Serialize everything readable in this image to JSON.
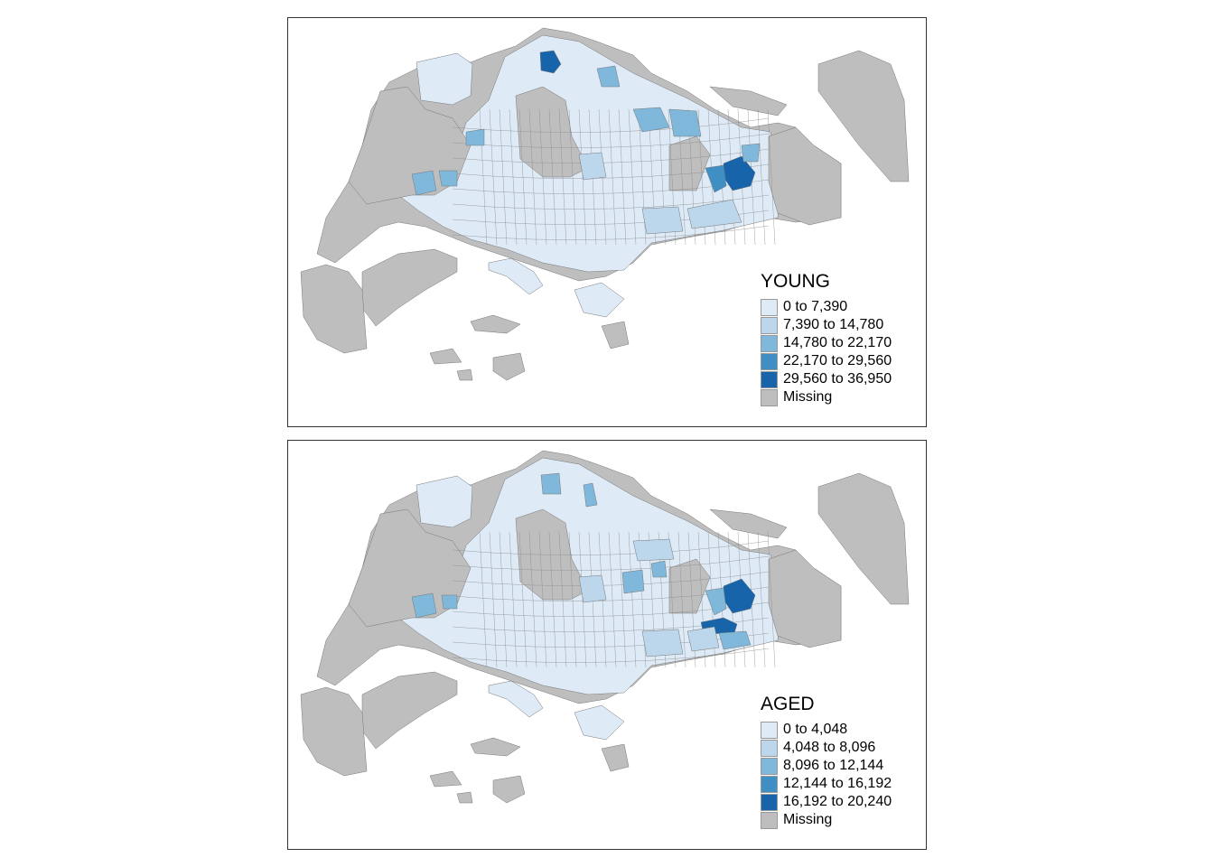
{
  "maps": [
    {
      "title": "YOUNG",
      "legend": [
        {
          "label": "0 to 7,390",
          "color": "#DEEBF7"
        },
        {
          "label": "7,390 to 14,780",
          "color": "#BCD6EC"
        },
        {
          "label": "14,780 to 22,170",
          "color": "#7FB8DA"
        },
        {
          "label": "22,170 to 29,560",
          "color": "#3F8FC5"
        },
        {
          "label": "29,560 to 36,950",
          "color": "#1764AB"
        },
        {
          "label": "Missing",
          "color": "#BEBEBE"
        }
      ]
    },
    {
      "title": "AGED",
      "legend": [
        {
          "label": "0 to 4,048",
          "color": "#DEEBF7"
        },
        {
          "label": "4,048 to 8,096",
          "color": "#BCD6EC"
        },
        {
          "label": "8,096 to 12,144",
          "color": "#7FB8DA"
        },
        {
          "label": "12,144 to 16,192",
          "color": "#3F8FC5"
        },
        {
          "label": "16,192 to 20,240",
          "color": "#1764AB"
        },
        {
          "label": "Missing",
          "color": "#BEBEBE"
        }
      ]
    }
  ]
}
